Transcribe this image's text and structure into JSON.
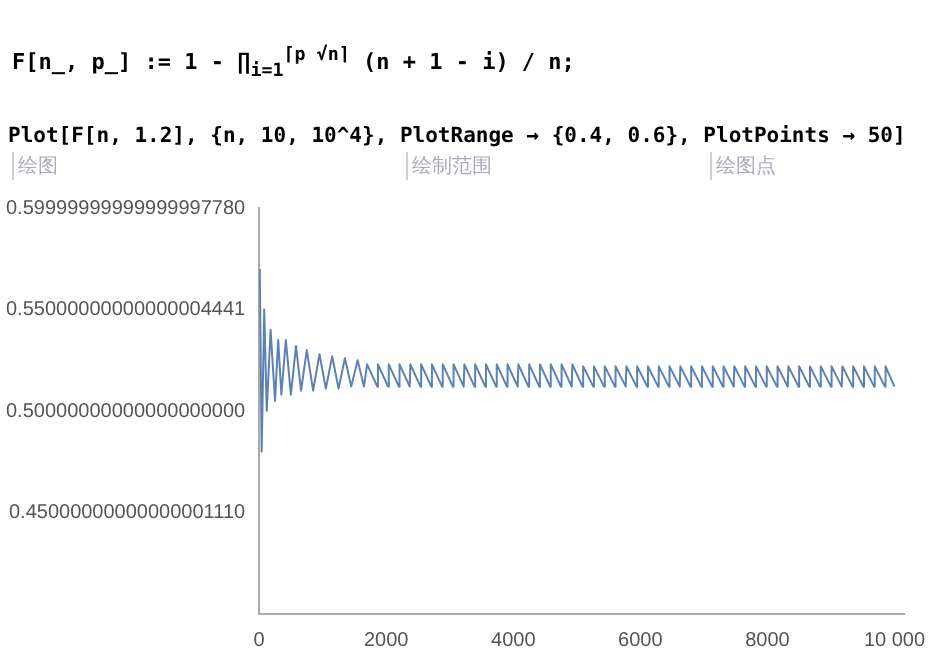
{
  "chart_data": {
    "type": "line",
    "annotations": [
      "F[n_, p_] := 1 - ∏$_{i=1}$$^{⌈p √n⌉}$ (n + 1 - i) / n;",
      "Plot[F[n, 1.2], {n, 10, 10^4}, PlotRange → {0.4, 0.6}, PlotPoints → 50]",
      "绘图",
      "绘制范围",
      "绘图点"
    ],
    "x": [
      10,
      40,
      80,
      120,
      180,
      250,
      300,
      350,
      420,
      500,
      580,
      660,
      750,
      850,
      950,
      1050,
      1150,
      1250,
      1350,
      1450,
      1550,
      1650,
      1700,
      1860,
      1870,
      2030,
      2040,
      2200,
      2210,
      2370,
      2380,
      2540,
      2550,
      2710,
      2720,
      2880,
      2890,
      3050,
      3060,
      3220,
      3230,
      3390,
      3400,
      3560,
      3570,
      3730,
      3740,
      3900,
      3910,
      4070,
      4080,
      4240,
      4250,
      4410,
      4420,
      4580,
      4590,
      4750,
      4760,
      4920,
      4930,
      5090,
      5100,
      5260,
      5270,
      5430,
      5440,
      5600,
      5610,
      5770,
      5780,
      5940,
      5950,
      6110,
      6120,
      6280,
      6290,
      6450,
      6460,
      6620,
      6630,
      6790,
      6800,
      6960,
      6970,
      7130,
      7140,
      7300,
      7310,
      7470,
      7480,
      7640,
      7650,
      7810,
      7820,
      7980,
      7990,
      8150,
      8160,
      8320,
      8330,
      8490,
      8500,
      8660,
      8670,
      8830,
      8840,
      9000,
      9010,
      9170,
      9180,
      9340,
      9350,
      9510,
      9520,
      9680,
      9690,
      9850,
      9860,
      10000
    ],
    "series": [
      {
        "color": "#5e81b5",
        "values": [
          0.57,
          0.48,
          0.55,
          0.5,
          0.54,
          0.505,
          0.535,
          0.508,
          0.535,
          0.508,
          0.532,
          0.51,
          0.53,
          0.51,
          0.528,
          0.511,
          0.527,
          0.511,
          0.526,
          0.512,
          0.525,
          0.512,
          0.523,
          0.512,
          0.523,
          0.512,
          0.523,
          0.512,
          0.523,
          0.512,
          0.523,
          0.512,
          0.523,
          0.512,
          0.523,
          0.512,
          0.523,
          0.512,
          0.523,
          0.512,
          0.523,
          0.512,
          0.523,
          0.512,
          0.523,
          0.512,
          0.523,
          0.512,
          0.523,
          0.512,
          0.523,
          0.512,
          0.523,
          0.512,
          0.523,
          0.512,
          0.523,
          0.512,
          0.523,
          0.512,
          0.523,
          0.512,
          0.522,
          0.512,
          0.522,
          0.512,
          0.522,
          0.512,
          0.522,
          0.512,
          0.522,
          0.512,
          0.522,
          0.512,
          0.522,
          0.512,
          0.522,
          0.512,
          0.522,
          0.512,
          0.522,
          0.512,
          0.522,
          0.512,
          0.522,
          0.512,
          0.522,
          0.512,
          0.522,
          0.512,
          0.522,
          0.512,
          0.522,
          0.512,
          0.522,
          0.512,
          0.522,
          0.512,
          0.522,
          0.512,
          0.522,
          0.512,
          0.522,
          0.512,
          0.522,
          0.512,
          0.522,
          0.512,
          0.522,
          0.512,
          0.522,
          0.512,
          0.522,
          0.512,
          0.522,
          0.512,
          0.522,
          0.512,
          0.522,
          0.512
        ]
      }
    ],
    "xlim": [
      0,
      10150
    ],
    "ylim": [
      0.4,
      0.6
    ],
    "xticks": [
      0,
      2000,
      4000,
      6000,
      8000,
      {
        "value": 10000,
        "label": "10 000"
      }
    ],
    "yticks": [
      {
        "value": 0.45,
        "label": "0.45000000000000001110"
      },
      {
        "value": 0.5,
        "label": "0.50000000000000000000"
      },
      {
        "value": 0.55,
        "label": "0.55000000000000004441"
      },
      {
        "value": 0.6,
        "label": "0.59999999999999997780"
      }
    ],
    "grid": false,
    "legend": false,
    "marker": "none",
    "line_style": "solid"
  }
}
